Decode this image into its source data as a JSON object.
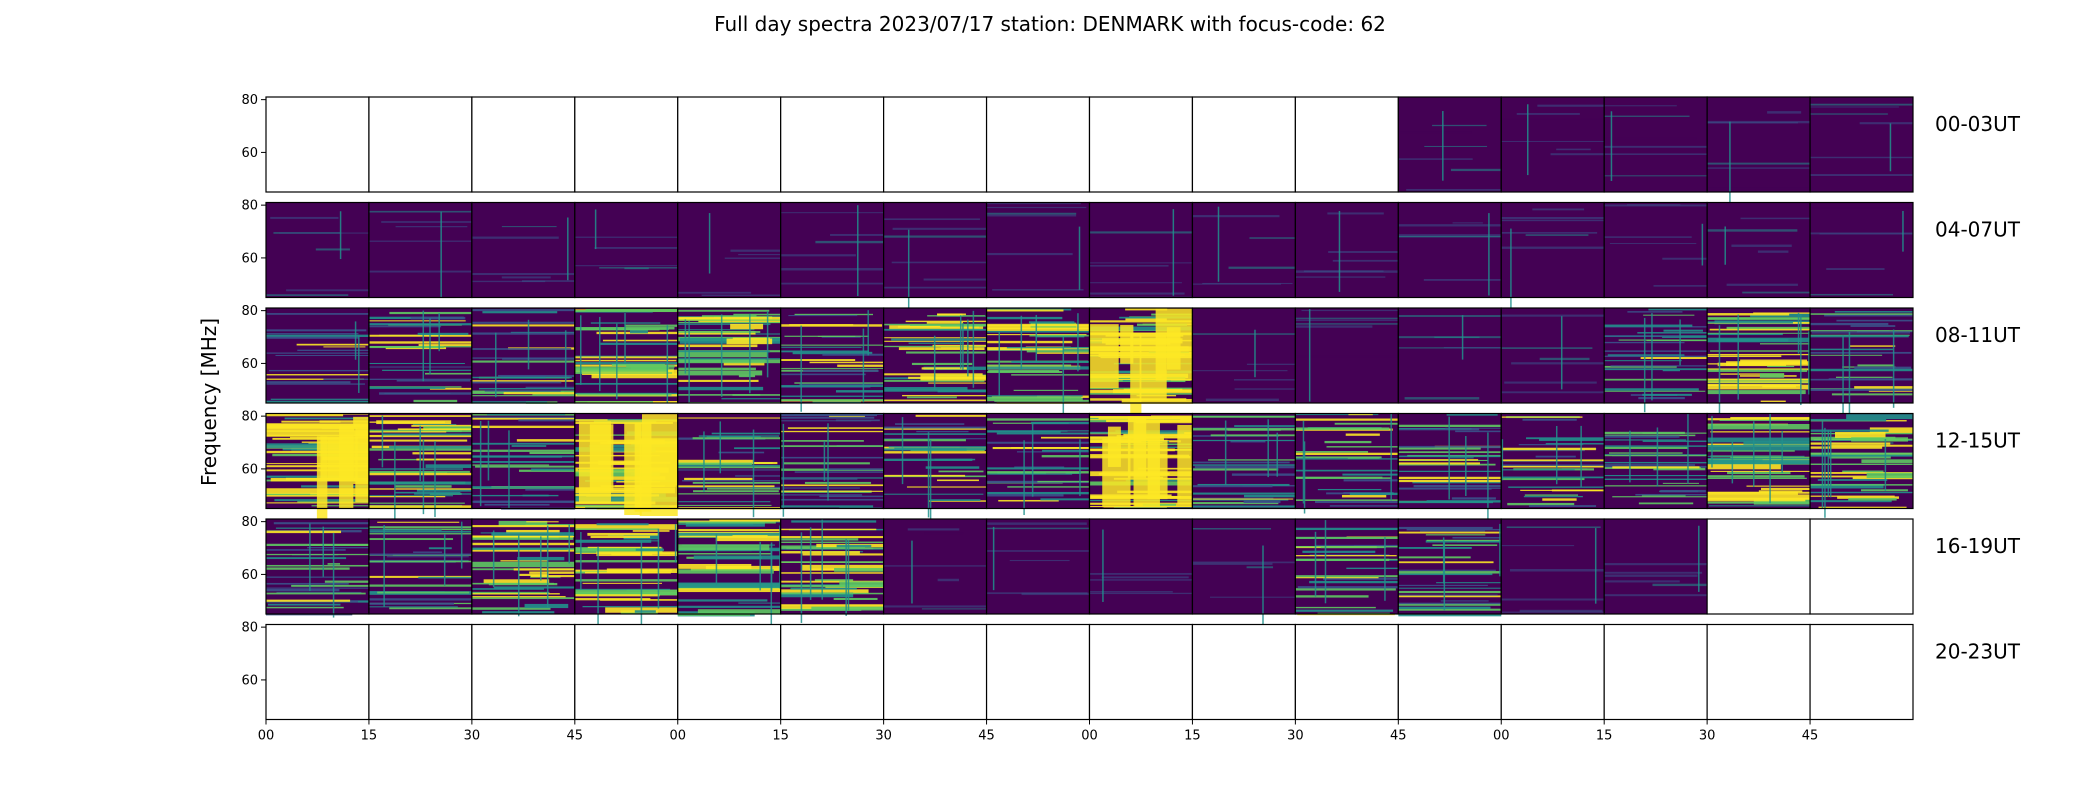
{
  "chart_data": {
    "type": "heatmap",
    "title": "Full day spectra 2023/07/17 station: DENMARK with focus-code: 62",
    "ylabel": "Frequency [MHz]",
    "y_ticks": [
      "80",
      "60"
    ],
    "ylim": [
      45,
      81
    ],
    "x_ticks": [
      "00",
      "15",
      "30",
      "45",
      "00",
      "15",
      "30",
      "45",
      "00",
      "15",
      "30",
      "45",
      "00",
      "15",
      "30",
      "45"
    ],
    "colormap": [
      "#440154",
      "#3b528b",
      "#21918c",
      "#5ec962",
      "#fde725"
    ],
    "background_color": "#440154",
    "rows": [
      {
        "label": "00-03UT",
        "levels": [
          -1,
          -1,
          -1,
          -1,
          -1,
          -1,
          -1,
          -1,
          -1,
          -1,
          -1,
          0,
          0,
          0,
          0,
          0
        ]
      },
      {
        "label": "04-07UT",
        "levels": [
          0,
          0,
          0,
          0,
          0,
          0,
          0,
          0,
          0,
          0,
          0,
          0,
          0,
          0,
          0,
          0
        ]
      },
      {
        "label": "08-11UT",
        "levels": [
          1,
          2,
          2,
          3,
          3,
          2,
          3,
          3,
          4,
          0,
          0,
          0,
          0,
          2,
          3,
          2
        ]
      },
      {
        "label": "12-15UT",
        "levels": [
          4,
          3,
          2,
          4,
          2,
          2,
          2,
          2,
          4,
          2,
          2,
          2,
          2,
          2,
          3,
          3
        ]
      },
      {
        "label": "16-19UT",
        "levels": [
          2,
          2,
          3,
          3,
          3,
          3,
          0,
          0,
          0,
          0,
          2,
          2,
          0,
          0,
          -1,
          -1
        ]
      },
      {
        "label": "20-23UT",
        "levels": [
          -1,
          -1,
          -1,
          -1,
          -1,
          -1,
          -1,
          -1,
          -1,
          -1,
          -1,
          -1,
          -1,
          -1,
          -1,
          -1
        ]
      }
    ]
  }
}
